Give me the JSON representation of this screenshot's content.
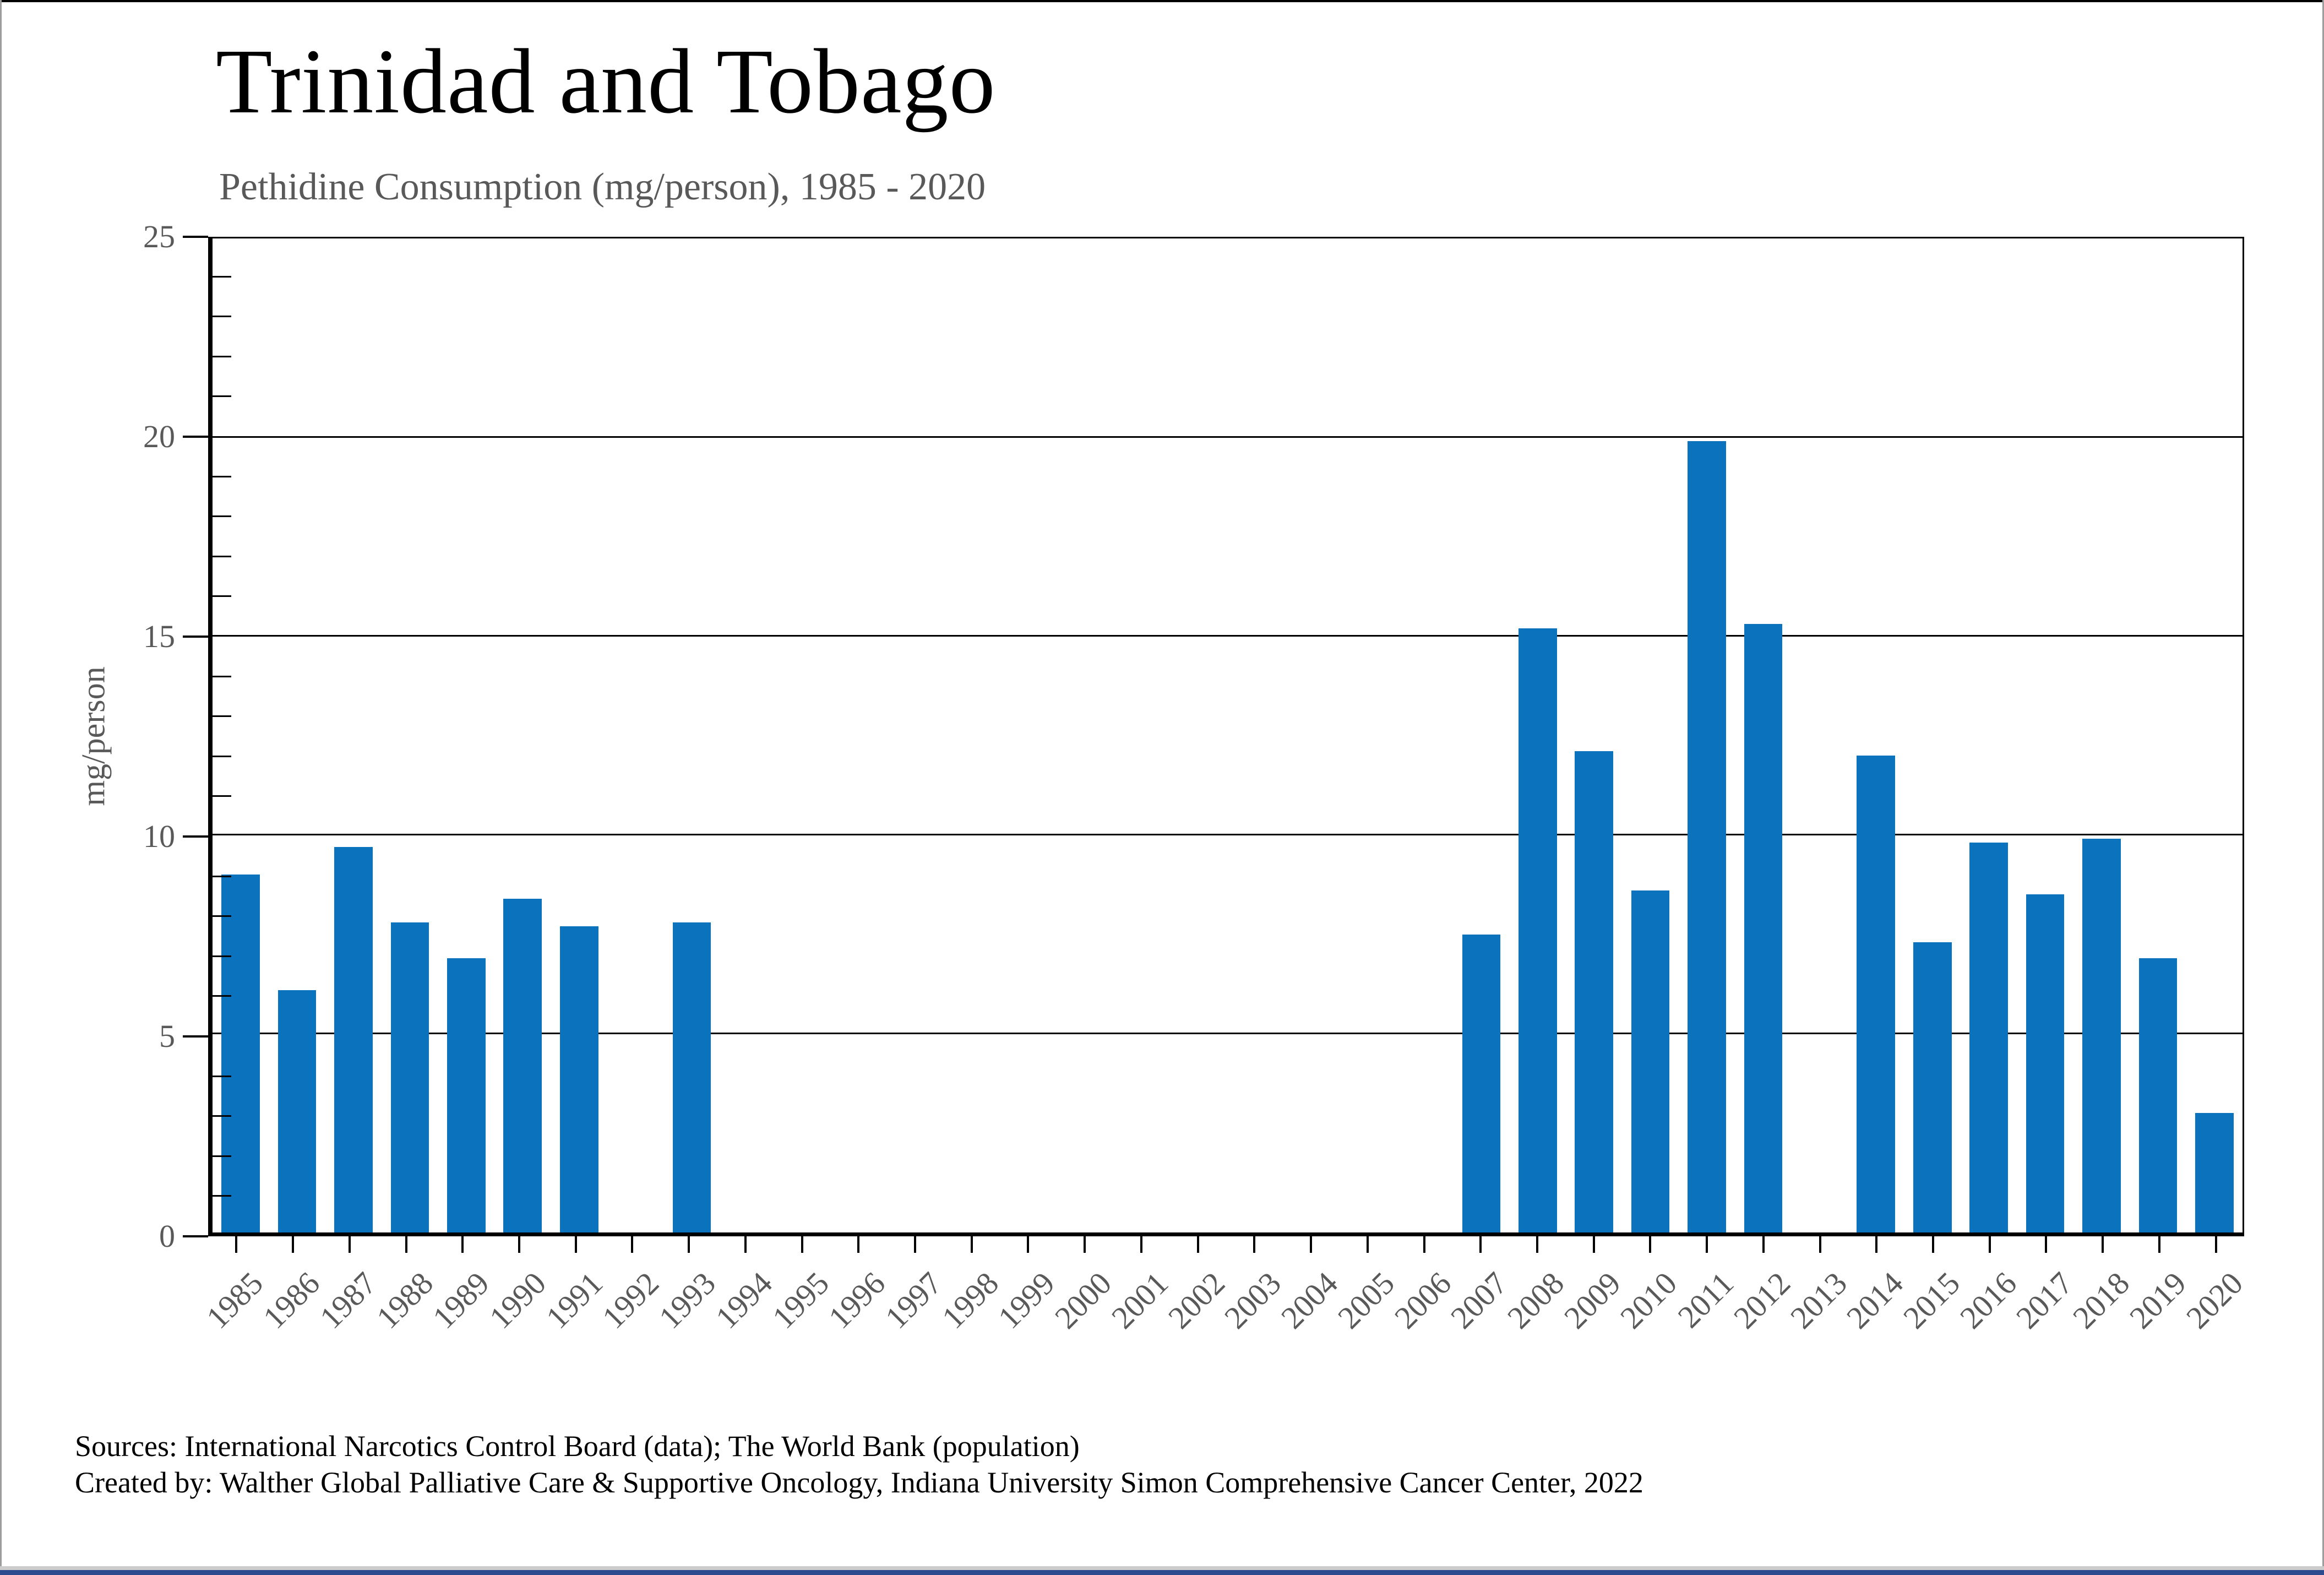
{
  "page": {
    "title": "Trinidad and Tobago",
    "subtitle": "Pethidine Consumption (mg/person), 1985 - 2020"
  },
  "footer": {
    "line1": "Sources: International Narcotics Control Board (data); The World Bank (population)",
    "line2": "Created by: Walther Global Palliative Care & Supportive Oncology, Indiana University Simon Comprehensive Cancer Center, 2022"
  },
  "chart_data": {
    "type": "bar",
    "title": "Trinidad and Tobago",
    "subtitle": "Pethidine Consumption (mg/person), 1985 - 2020",
    "xlabel": "",
    "ylabel": "mg/person",
    "ylim": [
      0,
      25
    ],
    "yticks": [
      0,
      5,
      10,
      15,
      20,
      25
    ],
    "minor_tick_interval": 1,
    "grid": "horizontal-major",
    "legend": "none",
    "categories": [
      "1985",
      "1986",
      "1987",
      "1988",
      "1989",
      "1990",
      "1991",
      "1992",
      "1993",
      "1994",
      "1995",
      "1996",
      "1997",
      "1998",
      "1999",
      "2000",
      "2001",
      "2002",
      "2003",
      "2004",
      "2005",
      "2006",
      "2007",
      "2008",
      "2009",
      "2010",
      "2011",
      "2012",
      "2013",
      "2014",
      "2015",
      "2016",
      "2017",
      "2018",
      "2019",
      "2020"
    ],
    "values": [
      9.0,
      6.1,
      9.7,
      7.8,
      6.9,
      8.4,
      7.7,
      0,
      7.8,
      0,
      0,
      0,
      0,
      0,
      0,
      0,
      0,
      0,
      0,
      0,
      0,
      0,
      7.5,
      15.2,
      12.1,
      8.6,
      19.9,
      15.3,
      0,
      12.0,
      7.3,
      9.8,
      8.5,
      9.9,
      6.9,
      3.0
    ]
  },
  "colors": {
    "bar_fill": "#0b72bd",
    "muted_text": "#595959",
    "bottom_bar_blue": "#2e4a8e",
    "bottom_strip_gray": "#cccccc"
  }
}
